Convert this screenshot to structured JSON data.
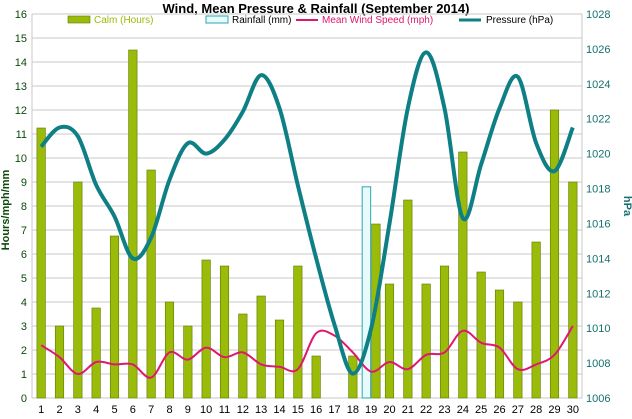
{
  "colors": {
    "calm": "#9bbb0b",
    "calm_stroke": "#5e7a00",
    "rainfall_fill": "#e8fbfb",
    "rainfall_stroke": "#2aa7b1",
    "wind": "#e0176f",
    "pressure": "#0f7f86",
    "left_axis_text": "#0c4a0c",
    "right_axis_text": "#157070",
    "grid": "#c8c8c8"
  },
  "chart_data": {
    "type": "bar",
    "title": "Wind, Mean Pressure & Rainfall (September 2014)",
    "ylabel": "Hours/mph/mm",
    "y2label": "hPa",
    "xlabel": "",
    "ylim": [
      0,
      16
    ],
    "y2lim": [
      1006,
      1028
    ],
    "yticks": [
      "0",
      "1",
      "2",
      "3",
      "4",
      "5",
      "6",
      "7",
      "8",
      "9",
      "10",
      "11",
      "12",
      "13",
      "14",
      "15",
      "16"
    ],
    "y2ticks": [
      "1006",
      "1008",
      "1010",
      "1012",
      "1014",
      "1016",
      "1018",
      "1020",
      "1022",
      "1024",
      "1026",
      "1028"
    ],
    "categories": [
      "1",
      "2",
      "3",
      "4",
      "5",
      "6",
      "7",
      "8",
      "9",
      "10",
      "11",
      "12",
      "13",
      "14",
      "15",
      "16",
      "17",
      "18",
      "19",
      "20",
      "21",
      "22",
      "23",
      "24",
      "25",
      "26",
      "27",
      "28",
      "29",
      "30"
    ],
    "grid": true,
    "legend_position": "top",
    "series": [
      {
        "name": "Calm (Hours)",
        "type": "bar",
        "axis": "left",
        "values": [
          11.25,
          3.0,
          9.0,
          3.75,
          6.75,
          14.5,
          9.5,
          4.0,
          3.0,
          5.75,
          5.5,
          3.5,
          4.25,
          3.25,
          5.5,
          1.75,
          0,
          1.75,
          7.25,
          4.75,
          8.25,
          4.75,
          5.5,
          10.25,
          5.25,
          4.5,
          4.0,
          6.5,
          12.0,
          9.0
        ]
      },
      {
        "name": "Rainfall (mm)",
        "type": "bar",
        "axis": "left",
        "values": [
          0,
          0,
          0,
          0,
          0,
          0,
          0,
          0,
          0,
          0,
          0,
          0,
          0,
          0,
          0,
          0,
          0,
          0,
          8.8,
          0,
          0,
          0,
          0,
          0,
          0,
          0,
          0,
          0,
          0,
          0
        ]
      },
      {
        "name": "Mean Wind Speed (mph)",
        "type": "line",
        "axis": "left",
        "values": [
          2.2,
          1.7,
          1.0,
          1.5,
          1.4,
          1.4,
          0.85,
          1.9,
          1.6,
          2.1,
          1.7,
          1.9,
          1.4,
          1.3,
          1.2,
          2.7,
          2.6,
          1.9,
          1.1,
          1.5,
          1.2,
          1.8,
          1.9,
          2.8,
          2.3,
          2.1,
          1.2,
          1.4,
          1.8,
          3.0
        ]
      },
      {
        "name": "Pressure (hPa)",
        "type": "line",
        "axis": "right",
        "values": [
          1020.4,
          1021.5,
          1021.0,
          1018.2,
          1016.4,
          1014.0,
          1015.2,
          1018.5,
          1020.6,
          1020.0,
          1020.8,
          1022.4,
          1024.5,
          1022.6,
          1018.2,
          1014.0,
          1010.2,
          1007.4,
          1010.0,
          1016.0,
          1022.6,
          1025.8,
          1022.6,
          1016.3,
          1019.4,
          1022.6,
          1024.4,
          1020.6,
          1019.0,
          1021.5
        ]
      }
    ]
  }
}
